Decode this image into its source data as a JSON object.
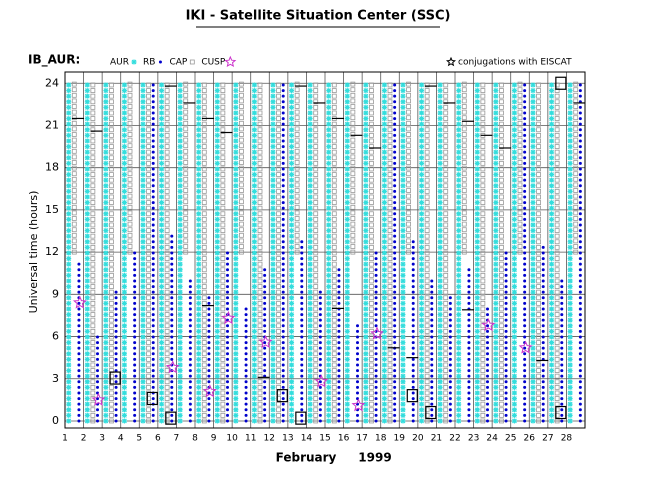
{
  "chart_data": {
    "type": "timeline",
    "title": "IKI - Satellite Situation Center (SSC)",
    "label": "IB_AUR:",
    "note": "conjugations with EISCAT",
    "x_label": "February",
    "year": "1999",
    "y_label": "Universal time (hours)",
    "xlim": [
      1,
      29
    ],
    "ylim": [
      -0.5,
      24.8
    ],
    "xticks": [
      1,
      2,
      3,
      4,
      5,
      6,
      7,
      8,
      9,
      10,
      11,
      12,
      13,
      14,
      15,
      16,
      17,
      18,
      19,
      20,
      21,
      22,
      23,
      24,
      25,
      26,
      27,
      28
    ],
    "yticks": [
      0,
      3,
      6,
      9,
      12,
      15,
      18,
      21,
      24
    ],
    "grid": true,
    "series": [
      {
        "name": "AUR",
        "color": "#33dddd",
        "offset": 0.2,
        "ranges": [
          [
            0,
            24
          ],
          [
            0,
            24
          ],
          [
            0,
            24
          ],
          [
            0,
            24
          ],
          [
            0,
            24
          ],
          [
            0,
            24
          ],
          [
            0,
            24
          ],
          [
            0,
            24
          ],
          [
            0,
            24
          ],
          [
            0,
            24
          ],
          [
            0,
            24
          ],
          [
            0,
            24
          ],
          [
            0,
            24
          ],
          [
            0,
            24
          ],
          [
            0,
            24
          ],
          [
            0,
            24
          ],
          [
            0,
            24
          ],
          [
            0,
            24
          ],
          [
            0,
            24
          ],
          [
            0,
            24
          ],
          [
            0,
            24
          ],
          [
            0,
            24
          ],
          [
            0,
            24
          ],
          [
            0,
            24
          ],
          [
            0,
            24
          ],
          [
            0,
            24
          ],
          [
            0,
            24
          ],
          [
            0,
            24
          ]
        ]
      },
      {
        "name": "RB",
        "color": "#0000cc",
        "offset": 0.75,
        "ranges": [
          [
            0,
            11.5
          ],
          [
            0,
            6
          ],
          [
            0,
            9.5
          ],
          [
            0,
            12
          ],
          [
            0,
            24
          ],
          [
            0,
            13.5
          ],
          [
            0,
            10
          ],
          [
            0,
            9
          ],
          [
            0,
            12
          ],
          [
            0,
            8
          ],
          [
            0,
            11
          ],
          [
            0,
            24
          ],
          [
            0,
            13
          ],
          [
            0,
            9.5
          ],
          [
            0,
            11
          ],
          [
            0,
            7
          ],
          [
            0,
            12
          ],
          [
            0,
            24
          ],
          [
            0,
            13
          ],
          [
            0,
            10
          ],
          [
            0,
            9
          ],
          [
            0,
            11
          ],
          [
            0,
            8
          ],
          [
            0,
            12
          ],
          [
            0,
            24
          ],
          [
            0,
            12.5
          ],
          [
            0,
            10
          ],
          [
            0,
            24
          ]
        ]
      },
      {
        "name": "CAP",
        "color": "#999999",
        "offset": 0.5,
        "ranges": [
          [
            12,
            24
          ],
          [
            0,
            24
          ],
          [
            0,
            24
          ],
          [
            12,
            24
          ],
          [
            0,
            24
          ],
          [
            0,
            24
          ],
          [
            12,
            24
          ],
          [
            0,
            24
          ],
          [
            0,
            24
          ],
          [
            12,
            24
          ],
          [
            0,
            24
          ],
          [
            0,
            24
          ],
          [
            12,
            24
          ],
          [
            0,
            24
          ],
          [
            0,
            24
          ],
          [
            12,
            24
          ],
          [
            0,
            24
          ],
          [
            0,
            24
          ],
          [
            12,
            24
          ],
          [
            0,
            24
          ],
          [
            0,
            24
          ],
          [
            12,
            24
          ],
          [
            0,
            24
          ],
          [
            0,
            24
          ],
          [
            12,
            24
          ],
          [
            0,
            24
          ],
          [
            0,
            24
          ],
          [
            12,
            24
          ]
        ]
      },
      {
        "name": "CUSP",
        "color": "#cc33cc",
        "offset": 0.8,
        "days": [
          1,
          2,
          6,
          8,
          9,
          11,
          14,
          16,
          17,
          23,
          25
        ],
        "hours": [
          8.4,
          1.5,
          3.8,
          2.1,
          7.3,
          5.6,
          2.8,
          1.1,
          6.2,
          6.8,
          5.2
        ]
      }
    ],
    "boxes": {
      "days": [
        3,
        5,
        6,
        12,
        13,
        19,
        20,
        27,
        27
      ],
      "hours": [
        3.05,
        1.6,
        0.2,
        1.8,
        0.2,
        1.8,
        0.6,
        0.6,
        24
      ]
    },
    "dashes": {
      "days": [
        1,
        2,
        6,
        7,
        8,
        8,
        9,
        11,
        13,
        14,
        15,
        15,
        16,
        17,
        18,
        19,
        20,
        21,
        22,
        22,
        23,
        24,
        26,
        28
      ],
      "hours": [
        21.5,
        20.6,
        23.8,
        22.6,
        21.5,
        8.2,
        20.5,
        3.1,
        23.8,
        22.6,
        21.5,
        8.0,
        20.3,
        19.4,
        5.2,
        4.5,
        23.8,
        22.6,
        21.3,
        7.9,
        20.3,
        19.4,
        4.3,
        22.6
      ]
    }
  }
}
